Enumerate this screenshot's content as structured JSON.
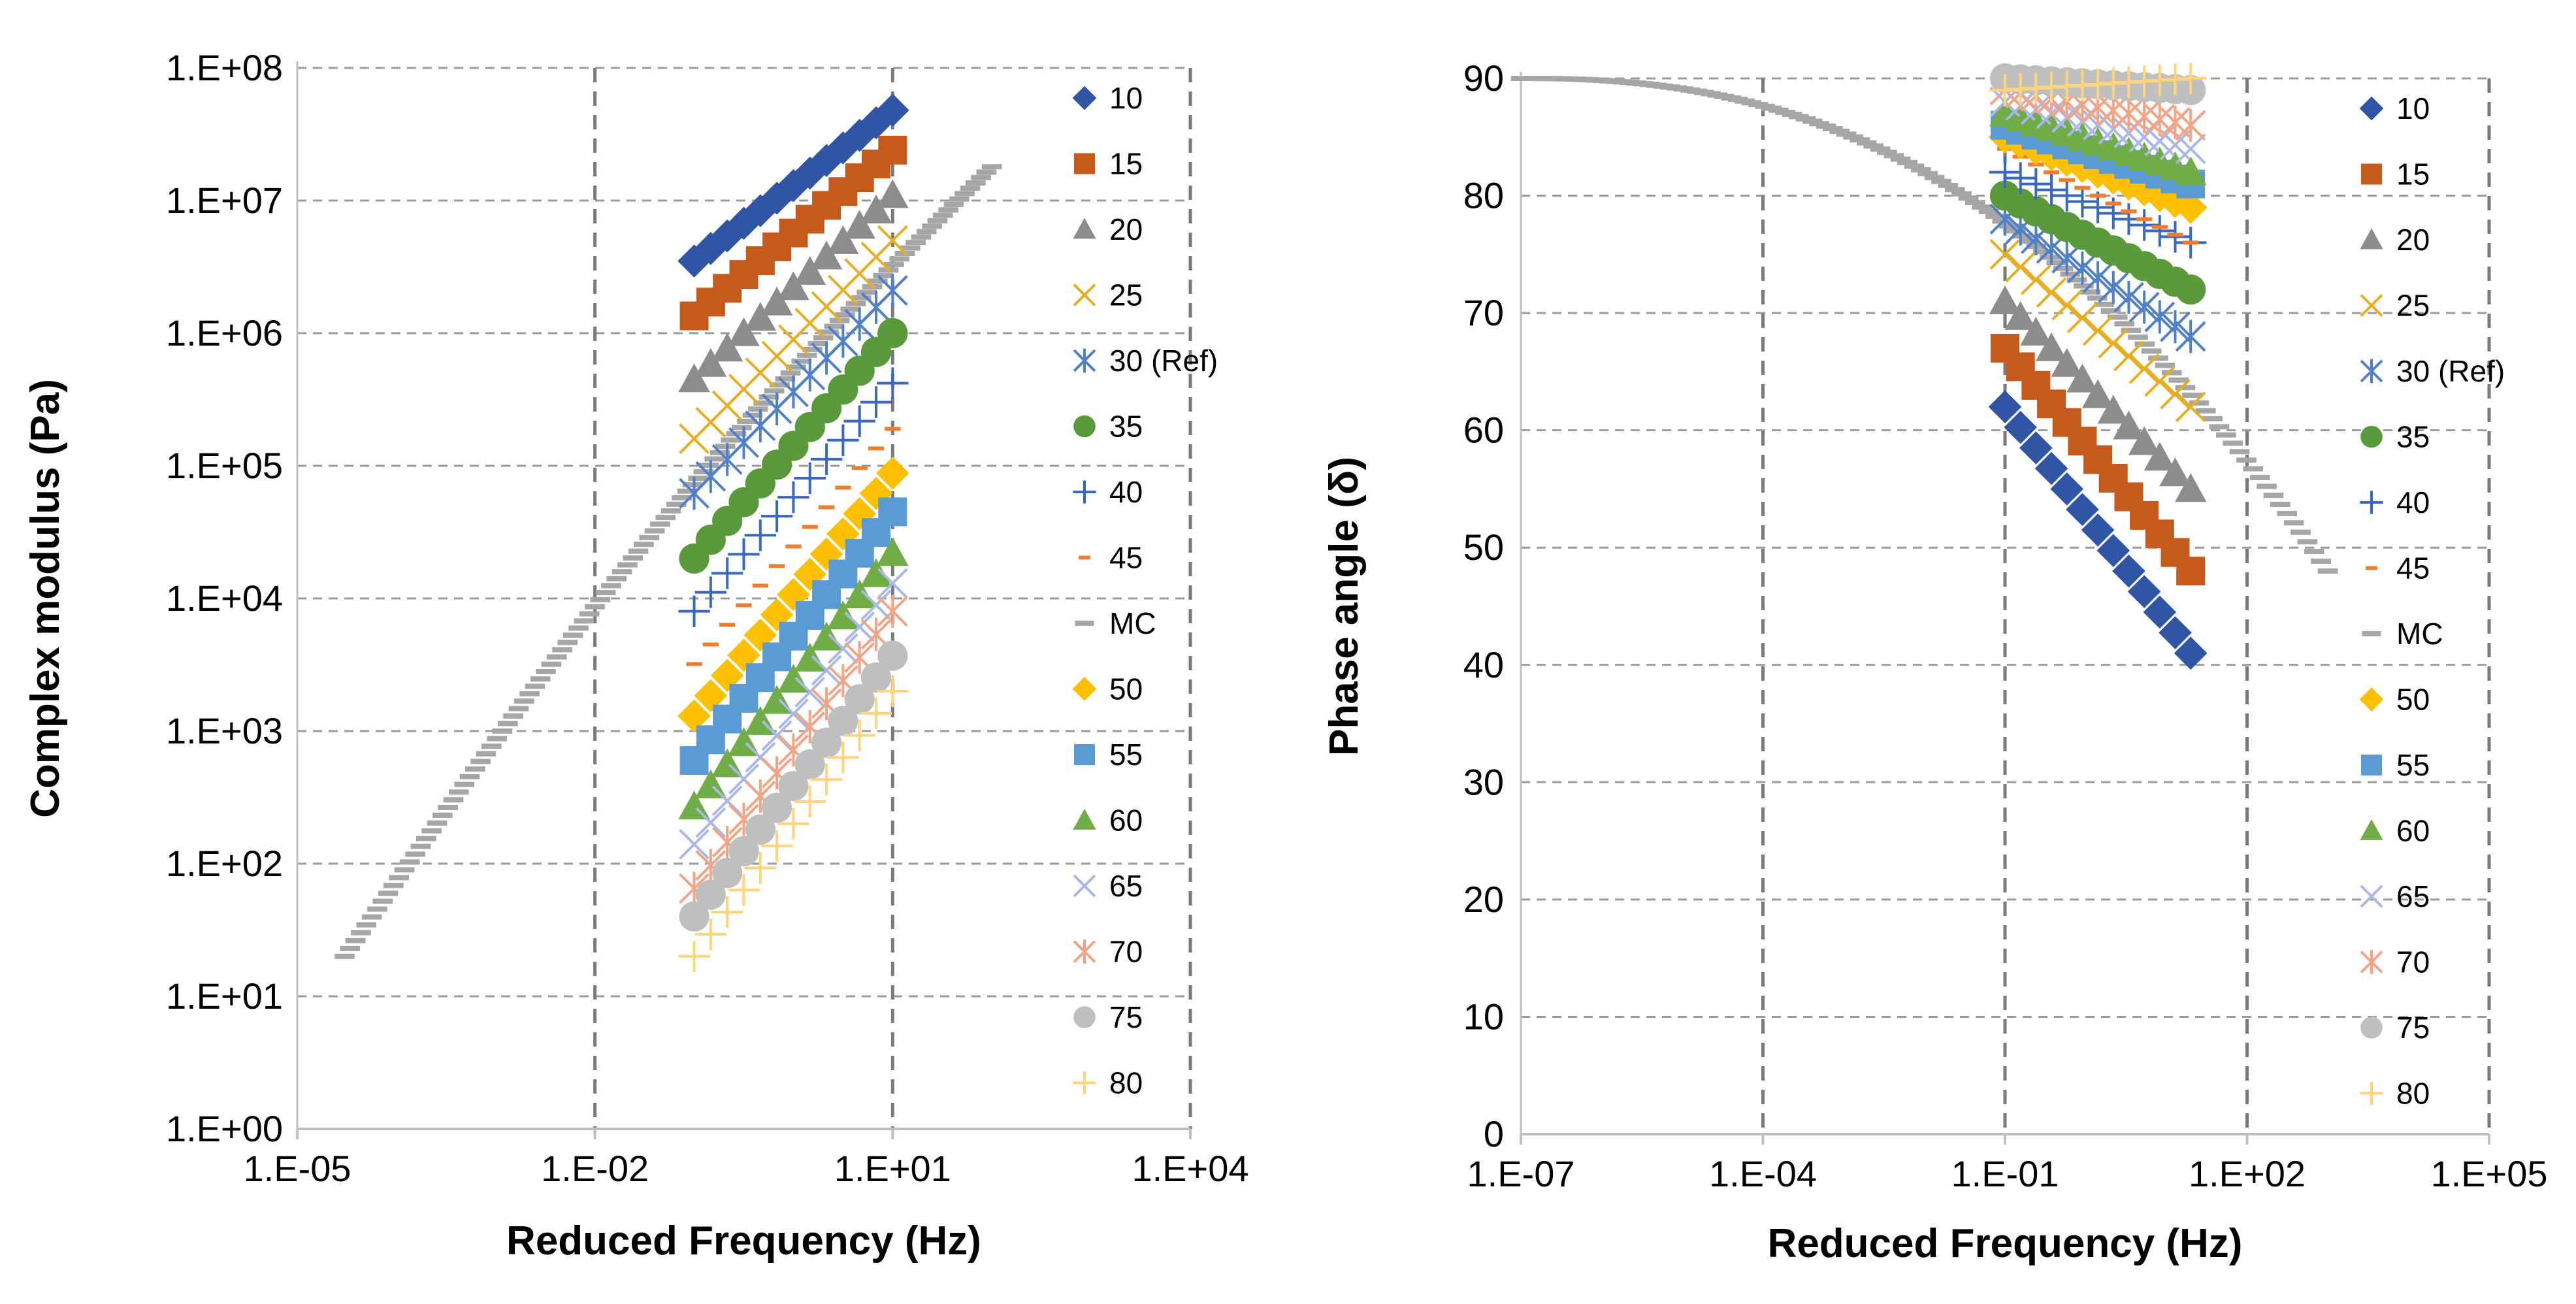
{
  "chart_data": [
    {
      "type": "scatter",
      "xscale": "log",
      "yscale": "log",
      "xlabel": "Reduced Frequency (Hz)",
      "ylabel": "Complex modulus (Pa)",
      "xlim": [
        1e-05,
        10000
      ],
      "ylim": [
        1,
        100000000
      ],
      "x_ticks": [
        1e-05,
        0.01,
        10,
        10000
      ],
      "x_tick_labels": [
        "1.E-05",
        "1.E-02",
        "1.E+01",
        "1.E+04"
      ],
      "y_ticks": [
        1,
        10,
        100,
        1000,
        10000,
        100000,
        1000000,
        10000000,
        100000000
      ],
      "y_tick_labels": [
        "1.E+00",
        "1.E+01",
        "1.E+02",
        "1.E+03",
        "1.E+04",
        "1.E+05",
        "1.E+06",
        "1.E+07",
        "1.E+08"
      ],
      "grid": true,
      "legend_position": "right",
      "freq_range": [
        0.1,
        10
      ],
      "mc_range": [
        3e-05,
        100
      ],
      "series": [
        {
          "name": "10",
          "marker": "diamond",
          "color": "#2f55a4",
          "start": 3500000,
          "end": 48000000
        },
        {
          "name": "15",
          "marker": "square",
          "color": "#c55a1c",
          "start": 1350000,
          "end": 24000000
        },
        {
          "name": "20",
          "marker": "triangle",
          "color": "#8c8c8c",
          "start": 450000,
          "end": 11000000
        },
        {
          "name": "25",
          "marker": "x",
          "color": "#e8ae23",
          "start": 160000,
          "end": 5000000
        },
        {
          "name": "30 (Ref)",
          "marker": "star",
          "color": "#4f80c8",
          "start": 62000,
          "end": 2100000
        },
        {
          "name": "35",
          "marker": "circle",
          "color": "#5b9a3c",
          "start": 20000,
          "end": 1000000
        },
        {
          "name": "40",
          "marker": "plus",
          "color": "#3a68be",
          "start": 8000,
          "end": 420000
        },
        {
          "name": "45",
          "marker": "dash",
          "color": "#ec7d31",
          "start": 3200,
          "end": 190000
        },
        {
          "name": "MC",
          "marker": "gray-dash",
          "color": "#a6a6a6",
          "start": 20,
          "end": 18000000
        },
        {
          "name": "50",
          "marker": "diamond",
          "color": "#ffc000",
          "start": 1300,
          "end": 88000
        },
        {
          "name": "55",
          "marker": "square",
          "color": "#5b9bd5",
          "start": 600,
          "end": 45000
        },
        {
          "name": "60",
          "marker": "triangle",
          "color": "#70ad47",
          "start": 270,
          "end": 22000
        },
        {
          "name": "65",
          "marker": "x",
          "color": "#a9b8e6",
          "start": 140,
          "end": 13000
        },
        {
          "name": "70",
          "marker": "star",
          "color": "#f4a484",
          "start": 65,
          "end": 8000
        },
        {
          "name": "75",
          "marker": "circle",
          "color": "#bfbfbf",
          "start": 40,
          "end": 3700
        },
        {
          "name": "80",
          "marker": "plus",
          "color": "#ffd47c",
          "start": 20,
          "end": 2000
        }
      ]
    },
    {
      "type": "scatter",
      "xscale": "log",
      "yscale": "linear",
      "xlabel": "Reduced Frequency (Hz)",
      "ylabel": "Phase angle (δ)",
      "xlim": [
        1e-07,
        100000
      ],
      "ylim": [
        0,
        90
      ],
      "x_ticks": [
        1e-07,
        0.0001,
        0.1,
        100,
        100000
      ],
      "x_tick_labels": [
        "1.E-07",
        "1.E-04",
        "1.E-01",
        "1.E+02",
        "1.E+05"
      ],
      "y_ticks": [
        0,
        10,
        20,
        30,
        40,
        50,
        60,
        70,
        80,
        90
      ],
      "y_tick_labels": [
        "0",
        "10",
        "20",
        "30",
        "40",
        "50",
        "60",
        "70",
        "80",
        "90"
      ],
      "grid": true,
      "legend_position": "right",
      "freq_range": [
        0.1,
        20
      ],
      "mc_range": [
        1e-07,
        1000
      ],
      "series": [
        {
          "name": "10",
          "marker": "diamond",
          "color": "#2f55a4",
          "start": 62,
          "end": 41
        },
        {
          "name": "15",
          "marker": "square",
          "color": "#c55a1c",
          "start": 67,
          "end": 48
        },
        {
          "name": "20",
          "marker": "triangle",
          "color": "#8c8c8c",
          "start": 71,
          "end": 55
        },
        {
          "name": "25",
          "marker": "x",
          "color": "#e8ae23",
          "start": 75,
          "end": 62
        },
        {
          "name": "30 (Ref)",
          "marker": "star",
          "color": "#4f80c8",
          "start": 78,
          "end": 68
        },
        {
          "name": "35",
          "marker": "circle",
          "color": "#5b9a3c",
          "start": 80,
          "end": 72
        },
        {
          "name": "40",
          "marker": "plus",
          "color": "#3a68be",
          "start": 82,
          "end": 76
        },
        {
          "name": "45",
          "marker": "dash",
          "color": "#ec7d31",
          "start": 84,
          "end": 76
        },
        {
          "name": "MC",
          "marker": "gray-dash",
          "color": "#a6a6a6",
          "start": 90,
          "end": 48
        },
        {
          "name": "50",
          "marker": "diamond",
          "color": "#ffc000",
          "start": 85,
          "end": 79
        },
        {
          "name": "55",
          "marker": "square",
          "color": "#5b9bd5",
          "start": 86,
          "end": 81
        },
        {
          "name": "60",
          "marker": "triangle",
          "color": "#70ad47",
          "start": 87,
          "end": 82
        },
        {
          "name": "65",
          "marker": "x",
          "color": "#a9b8e6",
          "start": 88,
          "end": 84
        },
        {
          "name": "70",
          "marker": "star",
          "color": "#f4a484",
          "start": 89,
          "end": 86
        },
        {
          "name": "75",
          "marker": "circle",
          "color": "#bfbfbf",
          "start": 90,
          "end": 89
        },
        {
          "name": "80",
          "marker": "plus",
          "color": "#ffd47c",
          "start": 89,
          "end": 90
        }
      ]
    }
  ]
}
